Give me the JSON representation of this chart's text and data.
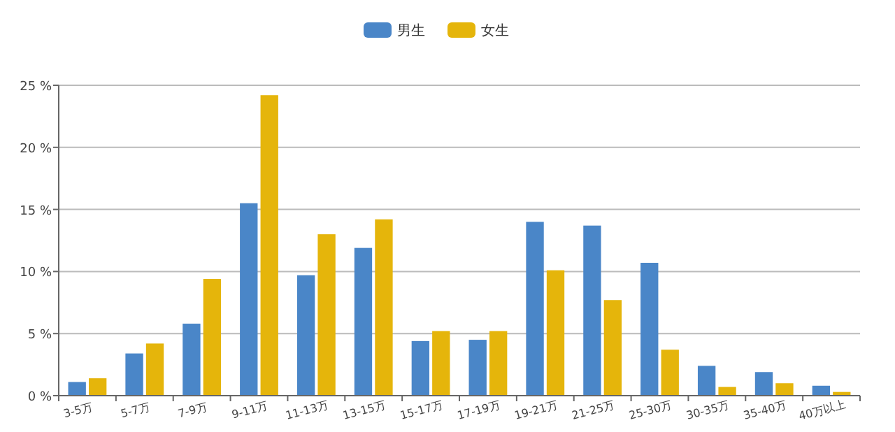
{
  "chart_data": {
    "type": "bar",
    "categories": [
      "3-5万",
      "5-7万",
      "7-9万",
      "9-11万",
      "11-13万",
      "13-15万",
      "15-17万",
      "17-19万",
      "19-21万",
      "21-25万",
      "25-30万",
      "30-35万",
      "35-40万",
      "40万以上"
    ],
    "series": [
      {
        "name": "男生",
        "color": "#4a86c8",
        "values": [
          1.1,
          3.4,
          5.8,
          15.5,
          9.7,
          11.9,
          4.4,
          4.5,
          14.0,
          13.7,
          10.7,
          2.4,
          1.9,
          0.8
        ]
      },
      {
        "name": "女生",
        "color": "#e5b50b",
        "values": [
          1.4,
          4.2,
          9.4,
          24.2,
          13.0,
          14.2,
          5.2,
          5.2,
          10.1,
          7.7,
          3.7,
          0.7,
          1.0,
          0.3
        ]
      }
    ],
    "ylim": [
      0,
      25
    ],
    "yticks": [
      {
        "value": 0,
        "label": "0 %"
      },
      {
        "value": 5,
        "label": "5 %"
      },
      {
        "value": 10,
        "label": "10 %"
      },
      {
        "value": 15,
        "label": "15 %"
      },
      {
        "value": 20,
        "label": "20 %"
      },
      {
        "value": 25,
        "label": "25 %"
      }
    ],
    "grid": "y",
    "legend": "top"
  }
}
